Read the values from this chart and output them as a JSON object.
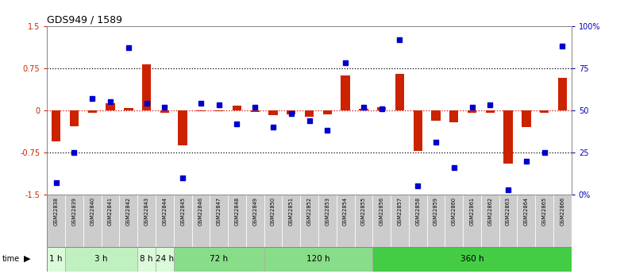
{
  "title": "GDS949 / 1589",
  "samples": [
    "GSM22838",
    "GSM22839",
    "GSM22840",
    "GSM22841",
    "GSM22842",
    "GSM22843",
    "GSM22844",
    "GSM22845",
    "GSM22846",
    "GSM22847",
    "GSM22848",
    "GSM22849",
    "GSM22850",
    "GSM22851",
    "GSM22852",
    "GSM22853",
    "GSM22854",
    "GSM22855",
    "GSM22856",
    "GSM22857",
    "GSM22858",
    "GSM22859",
    "GSM22860",
    "GSM22861",
    "GSM22862",
    "GSM22863",
    "GSM22864",
    "GSM22865",
    "GSM22866"
  ],
  "log_ratio": [
    -0.55,
    -0.28,
    -0.04,
    0.12,
    0.04,
    0.82,
    -0.05,
    -0.62,
    -0.02,
    -0.02,
    0.08,
    -0.03,
    -0.08,
    -0.07,
    -0.12,
    -0.07,
    0.62,
    0.02,
    0.05,
    0.65,
    -0.72,
    -0.18,
    -0.22,
    -0.04,
    -0.04,
    -0.95,
    -0.3,
    -0.05,
    0.58
  ],
  "percentile_rank": [
    7,
    25,
    57,
    55,
    87,
    54,
    52,
    10,
    54,
    53,
    42,
    52,
    40,
    48,
    44,
    38,
    78,
    52,
    51,
    92,
    5,
    31,
    16,
    52,
    53,
    3,
    20,
    25,
    88
  ],
  "time_groups": [
    {
      "label": "1 h",
      "start": 0,
      "end": 1,
      "color": "#dafada"
    },
    {
      "label": "3 h",
      "start": 1,
      "end": 5,
      "color": "#c0f0c0"
    },
    {
      "label": "8 h",
      "start": 5,
      "end": 6,
      "color": "#dafada"
    },
    {
      "label": "24 h",
      "start": 6,
      "end": 7,
      "color": "#dafada"
    },
    {
      "label": "72 h",
      "start": 7,
      "end": 12,
      "color": "#88dd88"
    },
    {
      "label": "120 h",
      "start": 12,
      "end": 18,
      "color": "#88dd88"
    },
    {
      "label": "360 h",
      "start": 18,
      "end": 29,
      "color": "#44cc44"
    }
  ],
  "ylim": [
    -1.5,
    1.5
  ],
  "bar_color": "#cc2200",
  "dot_color": "#0000cc",
  "bg_color": "#ffffff",
  "label_bg_color": "#cccccc",
  "dotted_lines_black": [
    0.75,
    -0.75
  ],
  "dotted_line_red": 0.0,
  "right_axis_ticks_pct": [
    0,
    25,
    50,
    75,
    100
  ],
  "right_axis_labels": [
    "0%",
    "25",
    "50",
    "75",
    "100%"
  ],
  "left_yticks": [
    -1.5,
    -0.75,
    0.0,
    0.75,
    1.5
  ],
  "left_yticklabels": [
    "-1.5",
    "-0.75",
    "0",
    "0.75",
    "1.5"
  ]
}
